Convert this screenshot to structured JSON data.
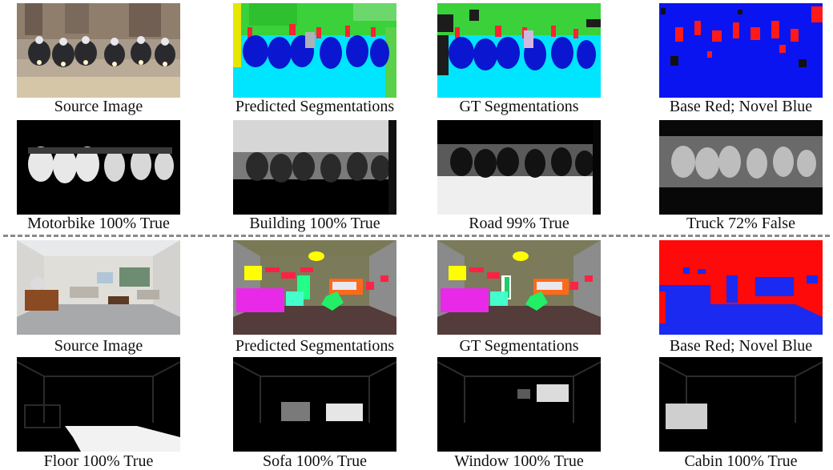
{
  "top_example": {
    "captions": [
      "Source Image",
      "Predicted Segmentations",
      "GT Segmentations",
      "Base Red; Novel Blue"
    ],
    "heatmap_captions": [
      "Motorbike 100% True",
      "Building 100% True",
      "Road 99% True",
      "Truck 72% False"
    ]
  },
  "bottom_example": {
    "captions": [
      "Source Image",
      "Predicted Segmentations",
      "GT Segmentations",
      "Base Red; Novel Blue"
    ],
    "heatmap_captions": [
      "Floor 100% True",
      "Sofa 100% True",
      "Window 100% True",
      "Cabin 100% True"
    ]
  },
  "colors": {
    "base": "#ff0000",
    "novel": "#0000ff",
    "divider": "#8a8a8a"
  }
}
